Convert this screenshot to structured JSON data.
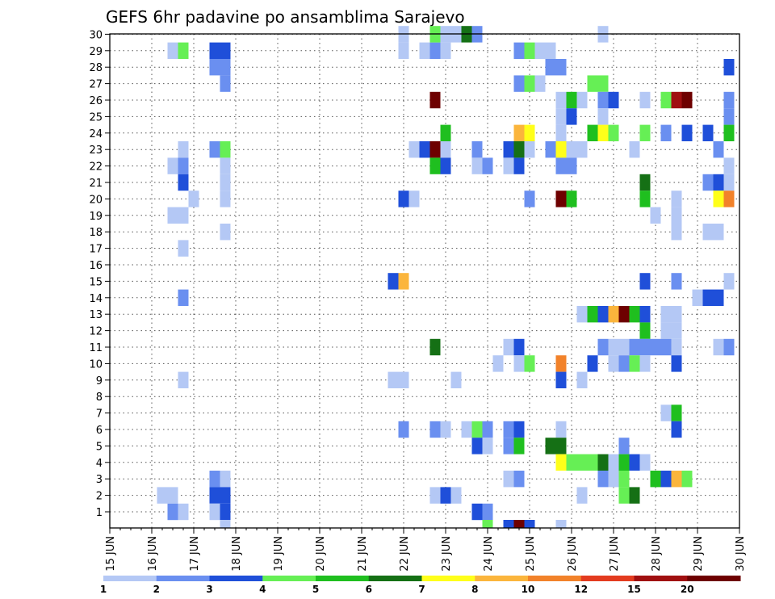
{
  "chart_data": {
    "type": "heatmap",
    "title": "GEFS 6hr padavine po ansamblima Sarajevo",
    "xlabel": "",
    "ylabel": "",
    "x_tick_labels": [
      "15 JUN",
      "16 JUN",
      "17 JUN",
      "18 JUN",
      "19 JUN",
      "20 JUN",
      "21 JUN",
      "22 JUN",
      "23 JUN",
      "24 JUN",
      "25 JUN",
      "26 JUN",
      "27 JUN",
      "28 JUN",
      "29 JUN",
      "30 JUN"
    ],
    "y_tick_labels": [
      "1",
      "2",
      "3",
      "4",
      "5",
      "6",
      "7",
      "8",
      "9",
      "10",
      "11",
      "12",
      "13",
      "14",
      "15",
      "16",
      "17",
      "18",
      "19",
      "20",
      "21",
      "22",
      "23",
      "24",
      "25",
      "26",
      "27",
      "28",
      "29",
      "30"
    ],
    "xlim": [
      15,
      30
    ],
    "ylim": [
      0,
      30
    ],
    "grid": true,
    "time_step_days": 0.25,
    "legend_levels": [
      "1",
      "2",
      "3",
      "4",
      "5",
      "6",
      "7",
      "8",
      "10",
      "12",
      "15",
      "20"
    ],
    "legend_colors": [
      "#b4c8f5",
      "#6a8ff0",
      "#1f4fd9",
      "#66ef55",
      "#1fbf1f",
      "#157015",
      "#ffff1a",
      "#fbb53c",
      "#f2822a",
      "#e33b1f",
      "#a00f10",
      "#6e0000"
    ],
    "cells": [
      {
        "day": 16.5,
        "member": 29,
        "level": 1
      },
      {
        "day": 16.75,
        "member": 29,
        "level": 4
      },
      {
        "day": 17.5,
        "member": 29,
        "level": 3
      },
      {
        "day": 17.75,
        "member": 29,
        "level": 3
      },
      {
        "day": 22.0,
        "member": 29,
        "level": 1
      },
      {
        "day": 22.5,
        "member": 29,
        "level": 1
      },
      {
        "day": 22.75,
        "member": 29,
        "level": 2
      },
      {
        "day": 23.0,
        "member": 29,
        "level": 1
      },
      {
        "day": 24.75,
        "member": 29,
        "level": 2
      },
      {
        "day": 25.0,
        "member": 29,
        "level": 4
      },
      {
        "day": 25.25,
        "member": 29,
        "level": 1
      },
      {
        "day": 25.5,
        "member": 29,
        "level": 1
      },
      {
        "day": 22.0,
        "member": 30,
        "level": 1
      },
      {
        "day": 22.75,
        "member": 30,
        "level": 4
      },
      {
        "day": 23.0,
        "member": 30,
        "level": 1
      },
      {
        "day": 23.25,
        "member": 30,
        "level": 1
      },
      {
        "day": 23.5,
        "member": 30,
        "level": 6
      },
      {
        "day": 23.75,
        "member": 30,
        "level": 2
      },
      {
        "day": 26.75,
        "member": 30,
        "level": 1
      },
      {
        "day": 17.5,
        "member": 28,
        "level": 2
      },
      {
        "day": 17.75,
        "member": 28,
        "level": 2
      },
      {
        "day": 25.5,
        "member": 28,
        "level": 2
      },
      {
        "day": 25.75,
        "member": 28,
        "level": 2
      },
      {
        "day": 29.75,
        "member": 28,
        "level": 3
      },
      {
        "day": 17.75,
        "member": 27,
        "level": 2
      },
      {
        "day": 24.75,
        "member": 27,
        "level": 2
      },
      {
        "day": 25.0,
        "member": 27,
        "level": 4
      },
      {
        "day": 25.25,
        "member": 27,
        "level": 1
      },
      {
        "day": 26.5,
        "member": 27,
        "level": 4
      },
      {
        "day": 26.75,
        "member": 27,
        "level": 4
      },
      {
        "day": 22.75,
        "member": 26,
        "level": 12
      },
      {
        "day": 25.75,
        "member": 26,
        "level": 1
      },
      {
        "day": 26.0,
        "member": 26,
        "level": 5
      },
      {
        "day": 26.25,
        "member": 26,
        "level": 1
      },
      {
        "day": 26.75,
        "member": 26,
        "level": 2
      },
      {
        "day": 27.0,
        "member": 26,
        "level": 3
      },
      {
        "day": 27.75,
        "member": 26,
        "level": 1
      },
      {
        "day": 28.25,
        "member": 26,
        "level": 4
      },
      {
        "day": 28.5,
        "member": 26,
        "level": 11
      },
      {
        "day": 28.75,
        "member": 26,
        "level": 12
      },
      {
        "day": 29.75,
        "member": 26,
        "level": 2
      },
      {
        "day": 25.75,
        "member": 25,
        "level": 1
      },
      {
        "day": 26.0,
        "member": 25,
        "level": 3
      },
      {
        "day": 26.75,
        "member": 25,
        "level": 1
      },
      {
        "day": 29.75,
        "member": 25,
        "level": 2
      },
      {
        "day": 23.0,
        "member": 24,
        "level": 5
      },
      {
        "day": 24.75,
        "member": 24,
        "level": 8
      },
      {
        "day": 25.0,
        "member": 24,
        "level": 7
      },
      {
        "day": 25.75,
        "member": 24,
        "level": 1
      },
      {
        "day": 26.5,
        "member": 24,
        "level": 5
      },
      {
        "day": 26.75,
        "member": 24,
        "level": 7
      },
      {
        "day": 27.0,
        "member": 24,
        "level": 4
      },
      {
        "day": 27.75,
        "member": 24,
        "level": 4
      },
      {
        "day": 28.25,
        "member": 24,
        "level": 2
      },
      {
        "day": 28.75,
        "member": 24,
        "level": 3
      },
      {
        "day": 29.25,
        "member": 24,
        "level": 3
      },
      {
        "day": 29.75,
        "member": 24,
        "level": 5
      },
      {
        "day": 16.75,
        "member": 23,
        "level": 1
      },
      {
        "day": 17.5,
        "member": 23,
        "level": 2
      },
      {
        "day": 17.75,
        "member": 23,
        "level": 4
      },
      {
        "day": 22.25,
        "member": 23,
        "level": 1
      },
      {
        "day": 22.5,
        "member": 23,
        "level": 3
      },
      {
        "day": 22.75,
        "member": 23,
        "level": 12
      },
      {
        "day": 23.0,
        "member": 23,
        "level": 1
      },
      {
        "day": 23.75,
        "member": 23,
        "level": 2
      },
      {
        "day": 24.5,
        "member": 23,
        "level": 3
      },
      {
        "day": 24.75,
        "member": 23,
        "level": 6
      },
      {
        "day": 25.0,
        "member": 23,
        "level": 1
      },
      {
        "day": 25.5,
        "member": 23,
        "level": 2
      },
      {
        "day": 25.75,
        "member": 23,
        "level": 7
      },
      {
        "day": 26.0,
        "member": 23,
        "level": 1
      },
      {
        "day": 26.25,
        "member": 23,
        "level": 1
      },
      {
        "day": 27.5,
        "member": 23,
        "level": 1
      },
      {
        "day": 29.5,
        "member": 23,
        "level": 2
      },
      {
        "day": 16.5,
        "member": 22,
        "level": 1
      },
      {
        "day": 16.75,
        "member": 22,
        "level": 2
      },
      {
        "day": 17.75,
        "member": 22,
        "level": 1
      },
      {
        "day": 22.75,
        "member": 22,
        "level": 5
      },
      {
        "day": 23.0,
        "member": 22,
        "level": 3
      },
      {
        "day": 23.75,
        "member": 22,
        "level": 1
      },
      {
        "day": 24.0,
        "member": 22,
        "level": 2
      },
      {
        "day": 24.5,
        "member": 22,
        "level": 1
      },
      {
        "day": 24.75,
        "member": 22,
        "level": 3
      },
      {
        "day": 25.75,
        "member": 22,
        "level": 2
      },
      {
        "day": 26.0,
        "member": 22,
        "level": 2
      },
      {
        "day": 29.75,
        "member": 22,
        "level": 1
      },
      {
        "day": 16.75,
        "member": 21,
        "level": 3
      },
      {
        "day": 17.75,
        "member": 21,
        "level": 1
      },
      {
        "day": 27.75,
        "member": 21,
        "level": 6
      },
      {
        "day": 29.25,
        "member": 21,
        "level": 2
      },
      {
        "day": 29.5,
        "member": 21,
        "level": 3
      },
      {
        "day": 29.75,
        "member": 21,
        "level": 1
      },
      {
        "day": 17.0,
        "member": 20,
        "level": 1
      },
      {
        "day": 17.75,
        "member": 20,
        "level": 1
      },
      {
        "day": 22.0,
        "member": 20,
        "level": 3
      },
      {
        "day": 22.25,
        "member": 20,
        "level": 1
      },
      {
        "day": 25.0,
        "member": 20,
        "level": 2
      },
      {
        "day": 25.75,
        "member": 20,
        "level": 12
      },
      {
        "day": 26.0,
        "member": 20,
        "level": 5
      },
      {
        "day": 27.75,
        "member": 20,
        "level": 5
      },
      {
        "day": 28.5,
        "member": 20,
        "level": 1
      },
      {
        "day": 29.5,
        "member": 20,
        "level": 7
      },
      {
        "day": 29.75,
        "member": 20,
        "level": 9
      },
      {
        "day": 16.5,
        "member": 19,
        "level": 1
      },
      {
        "day": 16.75,
        "member": 19,
        "level": 1
      },
      {
        "day": 28.0,
        "member": 19,
        "level": 1
      },
      {
        "day": 28.5,
        "member": 19,
        "level": 1
      },
      {
        "day": 17.75,
        "member": 18,
        "level": 1
      },
      {
        "day": 28.5,
        "member": 18,
        "level": 1
      },
      {
        "day": 29.25,
        "member": 18,
        "level": 1
      },
      {
        "day": 29.5,
        "member": 18,
        "level": 1
      },
      {
        "day": 16.75,
        "member": 17,
        "level": 1
      },
      {
        "day": 21.75,
        "member": 15,
        "level": 3
      },
      {
        "day": 22.0,
        "member": 15,
        "level": 8
      },
      {
        "day": 27.75,
        "member": 15,
        "level": 3
      },
      {
        "day": 28.5,
        "member": 15,
        "level": 2
      },
      {
        "day": 29.75,
        "member": 15,
        "level": 1
      },
      {
        "day": 16.75,
        "member": 14,
        "level": 2
      },
      {
        "day": 29.0,
        "member": 14,
        "level": 1
      },
      {
        "day": 29.25,
        "member": 14,
        "level": 3
      },
      {
        "day": 29.5,
        "member": 14,
        "level": 3
      },
      {
        "day": 26.25,
        "member": 13,
        "level": 1
      },
      {
        "day": 26.5,
        "member": 13,
        "level": 5
      },
      {
        "day": 26.75,
        "member": 13,
        "level": 3
      },
      {
        "day": 27.0,
        "member": 13,
        "level": 8
      },
      {
        "day": 27.25,
        "member": 13,
        "level": 12
      },
      {
        "day": 27.5,
        "member": 13,
        "level": 5
      },
      {
        "day": 27.75,
        "member": 13,
        "level": 3
      },
      {
        "day": 28.25,
        "member": 13,
        "level": 1
      },
      {
        "day": 28.5,
        "member": 13,
        "level": 1
      },
      {
        "day": 27.75,
        "member": 12,
        "level": 5
      },
      {
        "day": 28.25,
        "member": 12,
        "level": 1
      },
      {
        "day": 28.5,
        "member": 12,
        "level": 1
      },
      {
        "day": 22.75,
        "member": 11,
        "level": 6
      },
      {
        "day": 24.5,
        "member": 11,
        "level": 1
      },
      {
        "day": 24.75,
        "member": 11,
        "level": 3
      },
      {
        "day": 26.75,
        "member": 11,
        "level": 2
      },
      {
        "day": 27.0,
        "member": 11,
        "level": 1
      },
      {
        "day": 27.25,
        "member": 11,
        "level": 1
      },
      {
        "day": 27.5,
        "member": 11,
        "level": 2
      },
      {
        "day": 27.75,
        "member": 11,
        "level": 2
      },
      {
        "day": 28.0,
        "member": 11,
        "level": 2
      },
      {
        "day": 28.25,
        "member": 11,
        "level": 2
      },
      {
        "day": 28.5,
        "member": 11,
        "level": 1
      },
      {
        "day": 29.5,
        "member": 11,
        "level": 1
      },
      {
        "day": 29.75,
        "member": 11,
        "level": 2
      },
      {
        "day": 24.25,
        "member": 10,
        "level": 1
      },
      {
        "day": 24.75,
        "member": 10,
        "level": 1
      },
      {
        "day": 25.0,
        "member": 10,
        "level": 4
      },
      {
        "day": 25.75,
        "member": 10,
        "level": 9
      },
      {
        "day": 26.5,
        "member": 10,
        "level": 3
      },
      {
        "day": 27.0,
        "member": 10,
        "level": 1
      },
      {
        "day": 27.25,
        "member": 10,
        "level": 2
      },
      {
        "day": 27.5,
        "member": 10,
        "level": 4
      },
      {
        "day": 27.75,
        "member": 10,
        "level": 1
      },
      {
        "day": 28.5,
        "member": 10,
        "level": 3
      },
      {
        "day": 16.75,
        "member": 9,
        "level": 1
      },
      {
        "day": 21.75,
        "member": 9,
        "level": 1
      },
      {
        "day": 22.0,
        "member": 9,
        "level": 1
      },
      {
        "day": 23.25,
        "member": 9,
        "level": 1
      },
      {
        "day": 25.75,
        "member": 9,
        "level": 3
      },
      {
        "day": 26.25,
        "member": 9,
        "level": 1
      },
      {
        "day": 28.25,
        "member": 7,
        "level": 1
      },
      {
        "day": 28.5,
        "member": 7,
        "level": 5
      },
      {
        "day": 22.0,
        "member": 6,
        "level": 2
      },
      {
        "day": 22.75,
        "member": 6,
        "level": 2
      },
      {
        "day": 23.0,
        "member": 6,
        "level": 1
      },
      {
        "day": 23.5,
        "member": 6,
        "level": 1
      },
      {
        "day": 23.75,
        "member": 6,
        "level": 4
      },
      {
        "day": 24.0,
        "member": 6,
        "level": 2
      },
      {
        "day": 24.5,
        "member": 6,
        "level": 2
      },
      {
        "day": 24.75,
        "member": 6,
        "level": 3
      },
      {
        "day": 25.75,
        "member": 6,
        "level": 1
      },
      {
        "day": 28.5,
        "member": 6,
        "level": 3
      },
      {
        "day": 23.75,
        "member": 5,
        "level": 3
      },
      {
        "day": 24.0,
        "member": 5,
        "level": 1
      },
      {
        "day": 24.5,
        "member": 5,
        "level": 2
      },
      {
        "day": 24.75,
        "member": 5,
        "level": 5
      },
      {
        "day": 25.5,
        "member": 5,
        "level": 6
      },
      {
        "day": 25.75,
        "member": 5,
        "level": 6
      },
      {
        "day": 27.25,
        "member": 5,
        "level": 2
      },
      {
        "day": 25.75,
        "member": 4,
        "level": 7
      },
      {
        "day": 26.0,
        "member": 4,
        "level": 4
      },
      {
        "day": 26.25,
        "member": 4,
        "level": 4
      },
      {
        "day": 26.5,
        "member": 4,
        "level": 4
      },
      {
        "day": 26.75,
        "member": 4,
        "level": 6
      },
      {
        "day": 27.0,
        "member": 4,
        "level": 1
      },
      {
        "day": 27.25,
        "member": 4,
        "level": 5
      },
      {
        "day": 27.5,
        "member": 4,
        "level": 3
      },
      {
        "day": 27.75,
        "member": 4,
        "level": 1
      },
      {
        "day": 17.5,
        "member": 3,
        "level": 2
      },
      {
        "day": 17.75,
        "member": 3,
        "level": 1
      },
      {
        "day": 24.5,
        "member": 3,
        "level": 1
      },
      {
        "day": 24.75,
        "member": 3,
        "level": 2
      },
      {
        "day": 26.75,
        "member": 3,
        "level": 2
      },
      {
        "day": 27.0,
        "member": 3,
        "level": 1
      },
      {
        "day": 27.25,
        "member": 3,
        "level": 4
      },
      {
        "day": 28.0,
        "member": 3,
        "level": 5
      },
      {
        "day": 28.25,
        "member": 3,
        "level": 3
      },
      {
        "day": 28.5,
        "member": 3,
        "level": 8
      },
      {
        "day": 28.75,
        "member": 3,
        "level": 4
      },
      {
        "day": 16.25,
        "member": 2,
        "level": 1
      },
      {
        "day": 16.5,
        "member": 2,
        "level": 1
      },
      {
        "day": 17.5,
        "member": 2,
        "level": 3
      },
      {
        "day": 17.75,
        "member": 2,
        "level": 3
      },
      {
        "day": 22.75,
        "member": 2,
        "level": 1
      },
      {
        "day": 23.0,
        "member": 2,
        "level": 3
      },
      {
        "day": 23.25,
        "member": 2,
        "level": 1
      },
      {
        "day": 26.25,
        "member": 2,
        "level": 1
      },
      {
        "day": 27.25,
        "member": 2,
        "level": 4
      },
      {
        "day": 27.5,
        "member": 2,
        "level": 6
      },
      {
        "day": 16.5,
        "member": 1,
        "level": 2
      },
      {
        "day": 16.75,
        "member": 1,
        "level": 1
      },
      {
        "day": 17.5,
        "member": 1,
        "level": 1
      },
      {
        "day": 17.75,
        "member": 1,
        "level": 3
      },
      {
        "day": 23.75,
        "member": 1,
        "level": 3
      },
      {
        "day": 24.0,
        "member": 1,
        "level": 2
      },
      {
        "day": 17.75,
        "member": 0,
        "level": 1
      },
      {
        "day": 24.0,
        "member": 0,
        "level": 4
      },
      {
        "day": 24.5,
        "member": 0,
        "level": 3
      },
      {
        "day": 24.75,
        "member": 0,
        "level": 12
      },
      {
        "day": 25.0,
        "member": 0,
        "level": 3
      },
      {
        "day": 25.75,
        "member": 0,
        "level": 1
      }
    ]
  }
}
